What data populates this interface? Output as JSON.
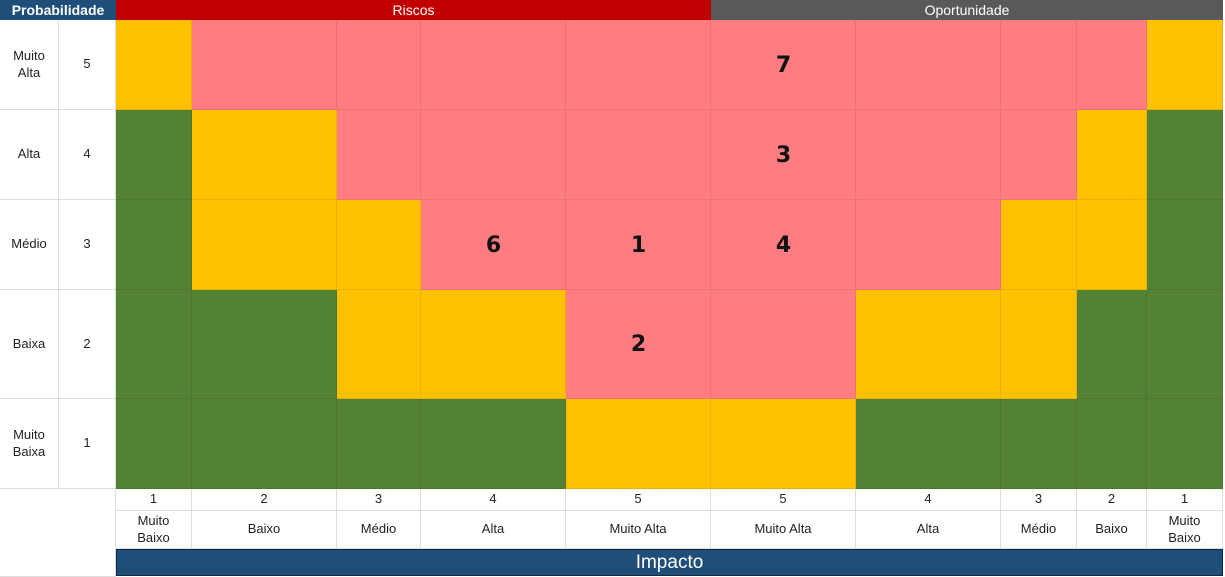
{
  "headers": {
    "probabilidade": "Probabilidade",
    "riscos": "Riscos",
    "oportunidade": "Oportunidade",
    "impacto": "Impacto"
  },
  "colors": {
    "riscos_header": "#c00000",
    "oportunidade_header": "#595959",
    "probabilidade_header": "#1f4e79",
    "impacto_bar": "#1f4e79",
    "high": "#ff7c80",
    "medium": "#ffc000",
    "low": "#548235"
  },
  "probability_rows": [
    {
      "label": "Muito Alta",
      "level": "5"
    },
    {
      "label": "Alta",
      "level": "4"
    },
    {
      "label": "Médio",
      "level": "3"
    },
    {
      "label": "Baixa",
      "level": "2"
    },
    {
      "label": "Muito Baixa",
      "level": "1"
    }
  ],
  "impact_columns": [
    {
      "level": "1",
      "label": "Muito Baixo"
    },
    {
      "level": "2",
      "label": "Baixo"
    },
    {
      "level": "3",
      "label": "Médio"
    },
    {
      "level": "4",
      "label": "Alta"
    },
    {
      "level": "5",
      "label": "Muito Alta"
    },
    {
      "level": "5",
      "label": "Muito Alta"
    },
    {
      "level": "4",
      "label": "Alta"
    },
    {
      "level": "3",
      "label": "Médio"
    },
    {
      "level": "2",
      "label": "Baixo"
    },
    {
      "level": "1",
      "label": "Muito Baixo"
    }
  ],
  "grid": [
    [
      "medium",
      "high",
      "high",
      "high",
      "high",
      "high",
      "high",
      "high",
      "high",
      "medium"
    ],
    [
      "low",
      "medium",
      "high",
      "high",
      "high",
      "high",
      "high",
      "high",
      "medium",
      "low"
    ],
    [
      "low",
      "medium",
      "medium",
      "high",
      "high",
      "high",
      "high",
      "medium",
      "medium",
      "low"
    ],
    [
      "low",
      "low",
      "medium",
      "medium",
      "high",
      "high",
      "medium",
      "medium",
      "low",
      "low"
    ],
    [
      "low",
      "low",
      "low",
      "low",
      "medium",
      "medium",
      "low",
      "low",
      "low",
      "low"
    ]
  ],
  "risk_items": [
    {
      "id": "7",
      "row": 0,
      "col": 5
    },
    {
      "id": "3",
      "row": 1,
      "col": 5
    },
    {
      "id": "6",
      "row": 2,
      "col": 3
    },
    {
      "id": "1",
      "row": 2,
      "col": 4
    },
    {
      "id": "4",
      "row": 2,
      "col": 5
    },
    {
      "id": "2",
      "row": 3,
      "col": 4
    }
  ]
}
